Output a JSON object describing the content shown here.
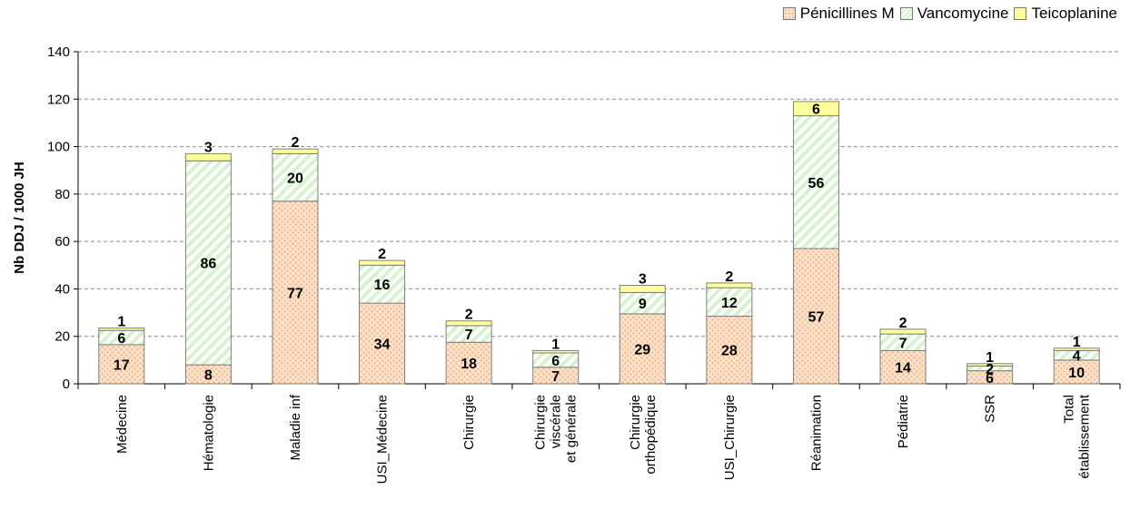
{
  "chart_data": {
    "type": "bar",
    "stacked": true,
    "title": "",
    "xlabel": "",
    "ylabel": "Nb DDJ / 1000 JH",
    "ylim": [
      0,
      140
    ],
    "yticks": [
      0,
      20,
      40,
      60,
      80,
      100,
      120,
      140
    ],
    "grid": true,
    "legend_position": "top-right",
    "categories": [
      [
        "Médecine"
      ],
      [
        "Hématologie"
      ],
      [
        "Maladie inf"
      ],
      [
        "USI_Médecine"
      ],
      [
        "Chirurgie"
      ],
      [
        "Chirurgie",
        "viscérale",
        "et générale"
      ],
      [
        "Chirurgie",
        "orthopédique"
      ],
      [
        "USI_Chirurgie"
      ],
      [
        "Réanimation"
      ],
      [
        "Pédiatrie"
      ],
      [
        "SSR"
      ],
      [
        "Total",
        "établissement"
      ]
    ],
    "series": [
      {
        "name": "Pénicillines M",
        "color": "#fbe3cc",
        "dot_color": "#f3b789",
        "values": [
          16.5,
          8,
          77,
          34,
          17.5,
          7,
          29.5,
          28.5,
          57,
          14,
          5.5,
          10
        ],
        "labels": [
          "17",
          "8",
          "77",
          "34",
          "18",
          "7",
          "29",
          "28",
          "57",
          "14",
          "6",
          "10"
        ]
      },
      {
        "name": "Vancomycine",
        "color": "#d6f2cf",
        "values": [
          6,
          86,
          20,
          16,
          7,
          6,
          9,
          12,
          56,
          7,
          2,
          4
        ],
        "labels": [
          "6",
          "86",
          "20",
          "16",
          "7",
          "6",
          "9",
          "12",
          "56",
          "7",
          "2",
          "4"
        ]
      },
      {
        "name": "Teicoplanine",
        "color": "#ffff99",
        "values": [
          1,
          3,
          2,
          2,
          2,
          1,
          3,
          2,
          6,
          2,
          1,
          1
        ],
        "labels": [
          "1",
          "3",
          "2",
          "2",
          "2",
          "1",
          "3",
          "2",
          "6",
          "2",
          "1",
          "1"
        ]
      }
    ]
  }
}
